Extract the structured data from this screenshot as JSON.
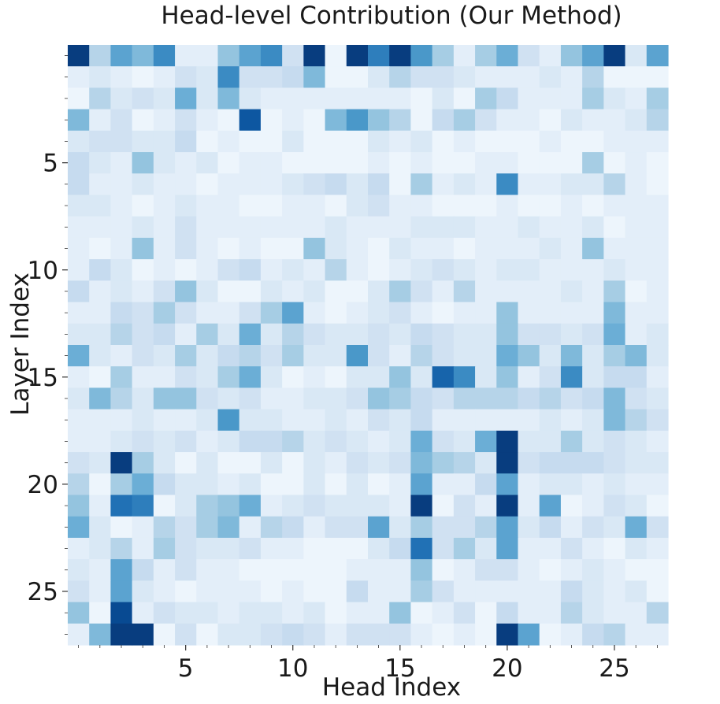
{
  "chart_data": {
    "type": "heatmap",
    "title": "Head-level Contribution (Our Method)",
    "xlabel": "Head Index",
    "ylabel": "Layer Index",
    "x_tick_labels": [
      "5",
      "10",
      "15",
      "20",
      "25"
    ],
    "x_tick_values": [
      5,
      10,
      15,
      20,
      25
    ],
    "y_tick_labels": [
      "5",
      "10",
      "15",
      "20",
      "25"
    ],
    "y_tick_values": [
      5,
      10,
      15,
      20,
      25
    ],
    "rows": 28,
    "cols": 28,
    "colormap": "Blues",
    "scale_min": 0,
    "scale_max": 1,
    "colorbar": false,
    "grid": false,
    "values": [
      [
        0.95,
        0.3,
        0.55,
        0.45,
        0.65,
        0.1,
        0.1,
        0.4,
        0.55,
        0.65,
        0.2,
        0.95,
        0.05,
        0.95,
        0.7,
        0.95,
        0.6,
        0.35,
        0.1,
        0.35,
        0.5,
        0.2,
        0.1,
        0.4,
        0.55,
        0.95,
        0.15,
        0.55
      ],
      [
        0.1,
        0.15,
        0.1,
        0.05,
        0.1,
        0.2,
        0.15,
        0.65,
        0.2,
        0.2,
        0.25,
        0.45,
        0.05,
        0.05,
        0.15,
        0.3,
        0.2,
        0.2,
        0.15,
        0.1,
        0.1,
        0.1,
        0.15,
        0.1,
        0.3,
        0.05,
        0.05,
        0.05
      ],
      [
        0.05,
        0.3,
        0.15,
        0.2,
        0.15,
        0.5,
        0.15,
        0.45,
        0.15,
        0.1,
        0.1,
        0.1,
        0.1,
        0.1,
        0.1,
        0.1,
        0.05,
        0.15,
        0.05,
        0.35,
        0.25,
        0.1,
        0.1,
        0.1,
        0.35,
        0.15,
        0.1,
        0.35
      ],
      [
        0.45,
        0.1,
        0.2,
        0.05,
        0.1,
        0.2,
        0.1,
        0.05,
        0.85,
        0.05,
        0.1,
        0.05,
        0.45,
        0.6,
        0.4,
        0.3,
        0.05,
        0.25,
        0.35,
        0.2,
        0.1,
        0.1,
        0.05,
        0.15,
        0.1,
        0.1,
        0.15,
        0.3
      ],
      [
        0.15,
        0.2,
        0.2,
        0.15,
        0.15,
        0.25,
        0.05,
        0.1,
        0.05,
        0.05,
        0.15,
        0.05,
        0.05,
        0.05,
        0.15,
        0.1,
        0.15,
        0.05,
        0.1,
        0.05,
        0.05,
        0.05,
        0.1,
        0.05,
        0.05,
        0.1,
        0.1,
        0.1
      ],
      [
        0.25,
        0.15,
        0.1,
        0.4,
        0.15,
        0.1,
        0.15,
        0.05,
        0.1,
        0.1,
        0.05,
        0.05,
        0.05,
        0.05,
        0.1,
        0.05,
        0.1,
        0.05,
        0.05,
        0.1,
        0.1,
        0.05,
        0.05,
        0.05,
        0.35,
        0.05,
        0.1,
        0.05
      ],
      [
        0.25,
        0.1,
        0.1,
        0.15,
        0.1,
        0.1,
        0.05,
        0.1,
        0.1,
        0.1,
        0.15,
        0.2,
        0.25,
        0.15,
        0.25,
        0.05,
        0.35,
        0.1,
        0.15,
        0.1,
        0.65,
        0.1,
        0.1,
        0.15,
        0.15,
        0.3,
        0.1,
        0.05
      ],
      [
        0.15,
        0.15,
        0.1,
        0.05,
        0.1,
        0.15,
        0.1,
        0.1,
        0.05,
        0.05,
        0.1,
        0.1,
        0.05,
        0.15,
        0.2,
        0.1,
        0.1,
        0.05,
        0.05,
        0.05,
        0.1,
        0.05,
        0.05,
        0.1,
        0.05,
        0.1,
        0.1,
        0.1
      ],
      [
        0.1,
        0.1,
        0.1,
        0.15,
        0.1,
        0.2,
        0.1,
        0.1,
        0.1,
        0.1,
        0.1,
        0.1,
        0.15,
        0.1,
        0.1,
        0.1,
        0.15,
        0.15,
        0.15,
        0.1,
        0.1,
        0.15,
        0.1,
        0.1,
        0.15,
        0.05,
        0.1,
        0.1
      ],
      [
        0.1,
        0.05,
        0.1,
        0.4,
        0.1,
        0.2,
        0.1,
        0.05,
        0.1,
        0.05,
        0.05,
        0.4,
        0.15,
        0.1,
        0.05,
        0.15,
        0.1,
        0.1,
        0.05,
        0.1,
        0.1,
        0.1,
        0.15,
        0.1,
        0.4,
        0.1,
        0.1,
        0.1
      ],
      [
        0.1,
        0.25,
        0.15,
        0.05,
        0.1,
        0.05,
        0.1,
        0.2,
        0.25,
        0.1,
        0.15,
        0.1,
        0.3,
        0.1,
        0.05,
        0.1,
        0.15,
        0.2,
        0.15,
        0.1,
        0.15,
        0.15,
        0.1,
        0.1,
        0.1,
        0.15,
        0.1,
        0.1
      ],
      [
        0.25,
        0.1,
        0.15,
        0.1,
        0.2,
        0.4,
        0.15,
        0.05,
        0.05,
        0.15,
        0.1,
        0.15,
        0.05,
        0.05,
        0.15,
        0.35,
        0.2,
        0.1,
        0.3,
        0.1,
        0.1,
        0.1,
        0.1,
        0.15,
        0.1,
        0.35,
        0.05,
        0.1
      ],
      [
        0.1,
        0.1,
        0.25,
        0.2,
        0.35,
        0.2,
        0.1,
        0.1,
        0.2,
        0.35,
        0.55,
        0.1,
        0.05,
        0.1,
        0.15,
        0.2,
        0.1,
        0.05,
        0.1,
        0.1,
        0.4,
        0.1,
        0.1,
        0.1,
        0.1,
        0.45,
        0.1,
        0.1
      ],
      [
        0.15,
        0.15,
        0.3,
        0.2,
        0.25,
        0.1,
        0.35,
        0.15,
        0.5,
        0.15,
        0.3,
        0.2,
        0.15,
        0.15,
        0.2,
        0.15,
        0.25,
        0.2,
        0.15,
        0.15,
        0.4,
        0.2,
        0.2,
        0.15,
        0.2,
        0.5,
        0.1,
        0.15
      ],
      [
        0.5,
        0.15,
        0.1,
        0.2,
        0.15,
        0.35,
        0.15,
        0.25,
        0.3,
        0.2,
        0.35,
        0.15,
        0.15,
        0.6,
        0.2,
        0.1,
        0.3,
        0.2,
        0.15,
        0.15,
        0.5,
        0.4,
        0.15,
        0.45,
        0.15,
        0.35,
        0.45,
        0.15
      ],
      [
        0.1,
        0.05,
        0.35,
        0.1,
        0.1,
        0.2,
        0.15,
        0.35,
        0.5,
        0.15,
        0.05,
        0.1,
        0.05,
        0.15,
        0.15,
        0.4,
        0.15,
        0.8,
        0.65,
        0.15,
        0.4,
        0.1,
        0.2,
        0.65,
        0.15,
        0.25,
        0.25,
        0.1
      ],
      [
        0.15,
        0.45,
        0.3,
        0.15,
        0.4,
        0.4,
        0.2,
        0.15,
        0.2,
        0.1,
        0.1,
        0.15,
        0.15,
        0.2,
        0.4,
        0.35,
        0.25,
        0.2,
        0.3,
        0.3,
        0.3,
        0.25,
        0.3,
        0.2,
        0.25,
        0.45,
        0.2,
        0.15
      ],
      [
        0.1,
        0.1,
        0.1,
        0.15,
        0.1,
        0.1,
        0.15,
        0.6,
        0.15,
        0.15,
        0.1,
        0.1,
        0.15,
        0.1,
        0.2,
        0.15,
        0.25,
        0.1,
        0.1,
        0.1,
        0.1,
        0.1,
        0.15,
        0.1,
        0.15,
        0.45,
        0.3,
        0.2
      ],
      [
        0.1,
        0.1,
        0.15,
        0.2,
        0.15,
        0.2,
        0.1,
        0.15,
        0.25,
        0.25,
        0.3,
        0.15,
        0.2,
        0.15,
        0.1,
        0.15,
        0.5,
        0.2,
        0.15,
        0.5,
        0.95,
        0.15,
        0.15,
        0.35,
        0.15,
        0.2,
        0.15,
        0.1
      ],
      [
        0.2,
        0.15,
        0.95,
        0.35,
        0.15,
        0.05,
        0.15,
        0.05,
        0.05,
        0.15,
        0.05,
        0.15,
        0.1,
        0.2,
        0.15,
        0.2,
        0.45,
        0.35,
        0.3,
        0.15,
        0.95,
        0.2,
        0.25,
        0.25,
        0.25,
        0.2,
        0.15,
        0.15
      ],
      [
        0.3,
        0.05,
        0.35,
        0.5,
        0.25,
        0.15,
        0.15,
        0.1,
        0.15,
        0.05,
        0.05,
        0.15,
        0.05,
        0.15,
        0.05,
        0.1,
        0.55,
        0.1,
        0.1,
        0.25,
        0.55,
        0.1,
        0.15,
        0.15,
        0.1,
        0.15,
        0.1,
        0.1
      ],
      [
        0.4,
        0.1,
        0.75,
        0.7,
        0.05,
        0.15,
        0.35,
        0.4,
        0.5,
        0.1,
        0.15,
        0.2,
        0.15,
        0.15,
        0.15,
        0.1,
        0.95,
        0.05,
        0.2,
        0.1,
        0.95,
        0.1,
        0.55,
        0.05,
        0.1,
        0.2,
        0.15,
        0.05
      ],
      [
        0.5,
        0.15,
        0.05,
        0.1,
        0.3,
        0.2,
        0.35,
        0.45,
        0.1,
        0.3,
        0.25,
        0.1,
        0.2,
        0.2,
        0.55,
        0.15,
        0.35,
        0.2,
        0.2,
        0.3,
        0.55,
        0.15,
        0.25,
        0.1,
        0.2,
        0.15,
        0.5,
        0.2
      ],
      [
        0.1,
        0.15,
        0.3,
        0.1,
        0.35,
        0.2,
        0.15,
        0.15,
        0.2,
        0.1,
        0.1,
        0.05,
        0.05,
        0.05,
        0.15,
        0.25,
        0.75,
        0.2,
        0.35,
        0.15,
        0.55,
        0.1,
        0.1,
        0.2,
        0.1,
        0.05,
        0.15,
        0.1
      ],
      [
        0.15,
        0.1,
        0.55,
        0.25,
        0.1,
        0.2,
        0.1,
        0.1,
        0.05,
        0.05,
        0.05,
        0.05,
        0.05,
        0.1,
        0.1,
        0.1,
        0.4,
        0.05,
        0.1,
        0.2,
        0.2,
        0.1,
        0.05,
        0.1,
        0.15,
        0.1,
        0.05,
        0.05
      ],
      [
        0.2,
        0.1,
        0.55,
        0.15,
        0.1,
        0.05,
        0.1,
        0.1,
        0.1,
        0.05,
        0.1,
        0.05,
        0.05,
        0.25,
        0.1,
        0.1,
        0.35,
        0.2,
        0.1,
        0.1,
        0.1,
        0.1,
        0.1,
        0.25,
        0.15,
        0.1,
        0.15,
        0.05
      ],
      [
        0.4,
        0.05,
        0.9,
        0.1,
        0.2,
        0.15,
        0.15,
        0.1,
        0.15,
        0.15,
        0.1,
        0.15,
        0.05,
        0.1,
        0.1,
        0.4,
        0.05,
        0.1,
        0.2,
        0.05,
        0.25,
        0.1,
        0.1,
        0.3,
        0.15,
        0.1,
        0.1,
        0.3
      ],
      [
        0.1,
        0.45,
        0.95,
        0.95,
        0.05,
        0.2,
        0.05,
        0.15,
        0.15,
        0.2,
        0.25,
        0.2,
        0.1,
        0.2,
        0.2,
        0.2,
        0.1,
        0.05,
        0.1,
        0.05,
        0.95,
        0.55,
        0.05,
        0.1,
        0.25,
        0.3,
        0.1,
        0.1
      ]
    ]
  }
}
